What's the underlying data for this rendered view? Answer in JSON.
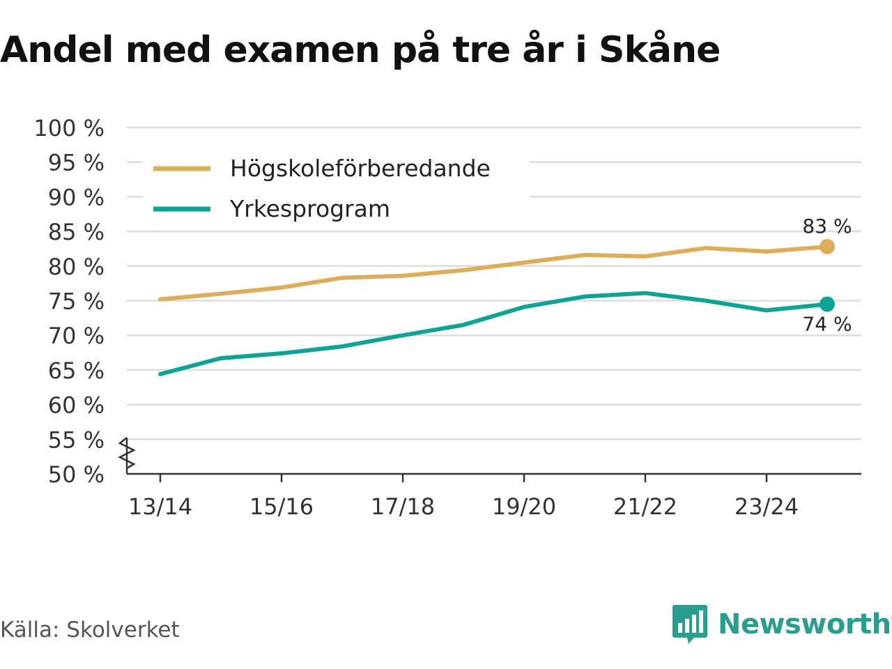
{
  "title": "Andel med examen på tre år i Skåne",
  "source": "Källa: Skolverket",
  "brand": {
    "name": "Newsworthy",
    "logo_icon": "newsworthy-chart-logo-icon",
    "color": "#2a9d8f"
  },
  "chart_data": {
    "type": "line",
    "title": "Andel med examen på tre år i Skåne",
    "x": [
      "13/14",
      "14/15",
      "15/16",
      "16/17",
      "17/18",
      "18/19",
      "19/20",
      "20/21",
      "21/22",
      "22/23",
      "23/24",
      "24/25"
    ],
    "x_tick_labels": [
      "13/14",
      "15/16",
      "17/18",
      "19/20",
      "21/22",
      "23/24"
    ],
    "y_tick_labels": [
      "50 %",
      "55 %",
      "60 %",
      "65 %",
      "70 %",
      "75 %",
      "80 %",
      "85 %",
      "90 %",
      "95 %",
      "100 %"
    ],
    "y_ticks": [
      50,
      55,
      60,
      65,
      70,
      75,
      80,
      85,
      90,
      95,
      100
    ],
    "ylim": [
      50,
      100
    ],
    "y_axis_break": true,
    "grid": "horizontal",
    "legend_position": "top-left",
    "series": [
      {
        "name": "Högskoleförberedande",
        "color": "#dcad5a",
        "values": [
          75.2,
          76.0,
          76.9,
          78.3,
          78.6,
          79.4,
          80.5,
          81.6,
          81.4,
          82.6,
          82.1,
          82.8
        ],
        "end_label": "83 %",
        "end_label_position": "above"
      },
      {
        "name": "Yrkesprogram",
        "color": "#0fa396",
        "values": [
          64.4,
          66.7,
          67.4,
          68.4,
          70.0,
          71.5,
          74.1,
          75.6,
          76.1,
          75.0,
          73.6,
          74.5
        ],
        "end_label": "74 %",
        "end_label_position": "below"
      }
    ]
  }
}
